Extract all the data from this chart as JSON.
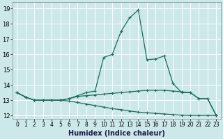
{
  "xlabel": "Humidex (Indice chaleur)",
  "background_color": "#cce8e8",
  "grid_color": "#ffffff",
  "line_color": "#1a6b5a",
  "x_values": [
    0,
    1,
    2,
    3,
    4,
    5,
    6,
    7,
    8,
    9,
    10,
    11,
    12,
    13,
    14,
    15,
    16,
    17,
    18,
    19,
    20,
    21,
    22,
    23
  ],
  "y_curve1": [
    13.5,
    13.2,
    13.0,
    13.0,
    13.0,
    13.0,
    13.1,
    13.3,
    13.5,
    13.6,
    15.8,
    16.0,
    17.5,
    18.4,
    18.9,
    15.65,
    15.7,
    15.9,
    14.1,
    13.5,
    13.5,
    13.1,
    13.1,
    12.0
  ],
  "y_curve2": [
    13.5,
    13.2,
    13.0,
    13.0,
    13.0,
    13.0,
    13.1,
    13.25,
    13.3,
    13.35,
    13.4,
    13.45,
    13.5,
    13.55,
    13.6,
    13.65,
    13.65,
    13.65,
    13.6,
    13.55,
    13.5,
    13.1,
    13.1,
    12.0
  ],
  "y_curve3": [
    13.5,
    13.2,
    13.0,
    13.0,
    13.0,
    13.0,
    12.95,
    12.85,
    12.75,
    12.65,
    12.55,
    12.45,
    12.38,
    12.3,
    12.22,
    12.18,
    12.14,
    12.1,
    12.06,
    12.02,
    12.0,
    12.0,
    12.0,
    12.0
  ],
  "ylim": [
    11.8,
    19.4
  ],
  "yticks": [
    12,
    13,
    14,
    15,
    16,
    17,
    18,
    19
  ],
  "xlim": [
    -0.5,
    23.5
  ],
  "xtick_labels": [
    "0",
    "1",
    "2",
    "3",
    "4",
    "5",
    "6",
    "7",
    "8",
    "9",
    "10",
    "11",
    "12",
    "13",
    "14",
    "15",
    "16",
    "17",
    "18",
    "19",
    "20",
    "21",
    "22",
    "23"
  ],
  "tick_fontsize": 6,
  "xlabel_fontsize": 7,
  "marker_size": 2.5,
  "line_width": 0.9
}
